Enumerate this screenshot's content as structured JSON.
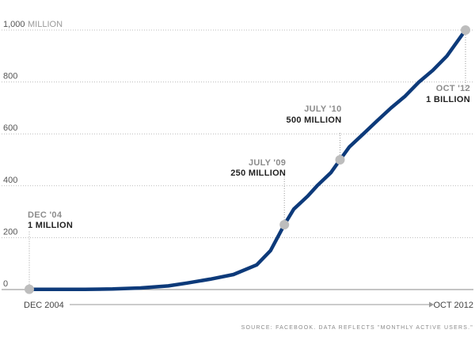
{
  "chart_data": {
    "type": "line",
    "y_unit": "MILLION",
    "ylim": [
      0,
      1000
    ],
    "y_ticks": [
      "0",
      "200",
      "400",
      "600",
      "800",
      "1,000"
    ],
    "x_start_label": "DEC 2004",
    "x_end_label": "OCT 2012",
    "grid": true,
    "series": [
      {
        "color": "#0d3a7a",
        "x": [
          "2004-12",
          "2005-06",
          "2005-12",
          "2006-06",
          "2006-12",
          "2007-06",
          "2007-10",
          "2008-03",
          "2008-08",
          "2009-01",
          "2009-04",
          "2009-07",
          "2009-09",
          "2009-12",
          "2010-02",
          "2010-05",
          "2010-07",
          "2010-09",
          "2010-12",
          "2011-03",
          "2011-06",
          "2011-09",
          "2011-12",
          "2012-03",
          "2012-06",
          "2012-10"
        ],
        "values": [
          1,
          1,
          1,
          2,
          6,
          14,
          25,
          40,
          58,
          95,
          150,
          250,
          310,
          360,
          400,
          450,
          500,
          550,
          600,
          650,
          700,
          745,
          800,
          845,
          900,
          1000
        ]
      }
    ],
    "annotations": [
      {
        "date": "DEC '04",
        "label": "1 MILLION",
        "x": "2004-12",
        "value": 1
      },
      {
        "date": "JULY '09",
        "label": "250 MILLION",
        "x": "2009-07",
        "value": 250
      },
      {
        "date": "JULY '10",
        "label": "500 MILLION",
        "x": "2010-07",
        "value": 500
      },
      {
        "date": "OCT '12",
        "label": "1 BILLION",
        "x": "2012-10",
        "value": 1000
      }
    ],
    "source": "SOURCE: FACEBOOK. DATA REFLECTS \"MONTHLY ACTIVE USERS.\""
  },
  "colors": {
    "line": "#0d3a7a",
    "marker": "#bdbdbd",
    "grid": "#bbbbbb"
  }
}
